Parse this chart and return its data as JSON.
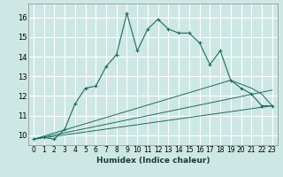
{
  "xlabel": "Humidex (Indice chaleur)",
  "bg_color": "#cde8e4",
  "grid_color": "#ffffff",
  "line_color": "#1e6b5e",
  "xlim": [
    -0.5,
    23.5
  ],
  "ylim": [
    9.5,
    16.7
  ],
  "yticks": [
    10,
    11,
    12,
    13,
    14,
    15,
    16
  ],
  "xticks": [
    0,
    1,
    2,
    3,
    4,
    5,
    6,
    7,
    8,
    9,
    10,
    11,
    12,
    13,
    14,
    15,
    16,
    17,
    18,
    19,
    20,
    21,
    22,
    23
  ],
  "main_line_x": [
    0,
    1,
    2,
    3,
    4,
    5,
    6,
    7,
    8,
    9,
    10,
    11,
    12,
    13,
    14,
    15,
    16,
    17,
    18,
    19,
    20,
    21,
    22,
    23
  ],
  "main_line_y": [
    9.8,
    9.9,
    9.8,
    10.3,
    11.6,
    12.4,
    12.5,
    13.5,
    14.1,
    16.2,
    14.3,
    15.4,
    15.9,
    15.4,
    15.2,
    15.2,
    14.7,
    13.6,
    14.3,
    12.8,
    12.4,
    12.1,
    11.5,
    11.5
  ],
  "ref_lines": [
    {
      "x": [
        0,
        19,
        21,
        22,
        23
      ],
      "y": [
        9.8,
        12.8,
        12.4,
        12.1,
        11.5
      ]
    },
    {
      "x": [
        0,
        23
      ],
      "y": [
        9.8,
        12.3
      ]
    },
    {
      "x": [
        0,
        23
      ],
      "y": [
        9.8,
        11.5
      ]
    }
  ]
}
